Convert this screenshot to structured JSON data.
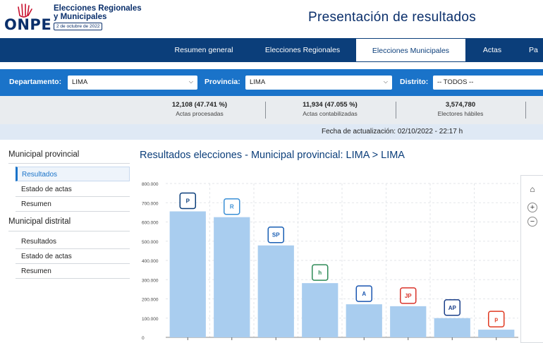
{
  "header": {
    "logo": "ONPE",
    "brand_line1": "Elecciones Regionales",
    "brand_line2": "y Municipales",
    "brand_date": "2 de octubre de 2022",
    "title": "Presentación de resultados"
  },
  "nav": {
    "tabs": [
      {
        "label": "Resumen general"
      },
      {
        "label": "Elecciones Regionales"
      },
      {
        "label": "Elecciones Municipales",
        "active": true
      },
      {
        "label": "Actas"
      },
      {
        "label": "Pa"
      }
    ]
  },
  "filters": {
    "departamento_label": "Departamento:",
    "departamento_value": "LIMA",
    "provincia_label": "Provincia:",
    "provincia_value": "LIMA",
    "distrito_label": "Distrito:",
    "distrito_value": "-- TODOS --"
  },
  "stats": [
    {
      "value": "12,108 (47.741 %)",
      "label": "Actas procesadas"
    },
    {
      "value": "11,934 (47.055 %)",
      "label": "Actas contabilizadas"
    },
    {
      "value": "3,574,780",
      "label": "Electores hábiles"
    }
  ],
  "update_text": "Fecha de actualización: 02/10/2022 - 22:17 h",
  "sidebar": {
    "section1": "Municipal provincial",
    "section1_items": [
      {
        "label": "Resultados",
        "active": true
      },
      {
        "label": "Estado de actas"
      },
      {
        "label": "Resumen"
      }
    ],
    "section2": "Municipal distrital",
    "section2_items": [
      {
        "label": "Resultados"
      },
      {
        "label": "Estado de actas"
      },
      {
        "label": "Resumen"
      }
    ]
  },
  "chart_title": "Resultados elecciones - Municipal provincial: LIMA > LIMA",
  "chart_data": {
    "type": "bar",
    "ylim": [
      0,
      800000
    ],
    "yticks": [
      "0",
      "100.000",
      "200.000",
      "300.000",
      "400.000",
      "500.000",
      "600.000",
      "700.000",
      "800.000"
    ],
    "values": [
      655000,
      625000,
      478000,
      282000,
      172000,
      162000,
      100000,
      40000
    ],
    "party_logos": [
      "P",
      "R",
      "SOMOS PERU",
      "home",
      "A",
      "JP",
      "AVANZA PAIS",
      "pencil"
    ],
    "bar_color": "#a9cdef",
    "grid": true
  },
  "colors": {
    "navy": "#0b3e7a",
    "accent": "#1a73c9"
  }
}
